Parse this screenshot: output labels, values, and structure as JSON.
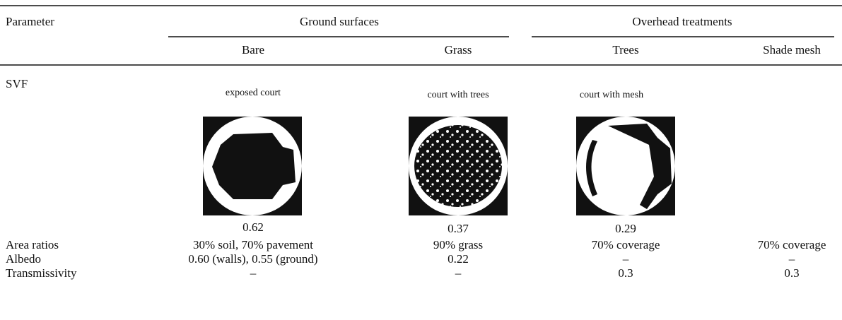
{
  "table": {
    "group_headers": [
      "Parameter",
      "Ground surfaces",
      "Overhead treatments"
    ],
    "columns": [
      "Bare",
      "Grass",
      "Trees",
      "Shade mesh"
    ],
    "svf": {
      "label": "SVF",
      "captions": [
        "exposed court",
        "court with trees",
        "court with mesh"
      ],
      "values": [
        0.62,
        0.37,
        0.29
      ]
    },
    "rows": [
      [
        "Area ratios",
        "30% soil, 70% pavement",
        "90% grass",
        "70% coverage",
        "70% coverage"
      ],
      [
        "Albedo",
        "0.60 (walls), 0.55 (ground)",
        "0.22",
        "–",
        "–"
      ],
      [
        "Transmissivity",
        "–",
        "–",
        "0.3",
        "0.3"
      ]
    ]
  }
}
